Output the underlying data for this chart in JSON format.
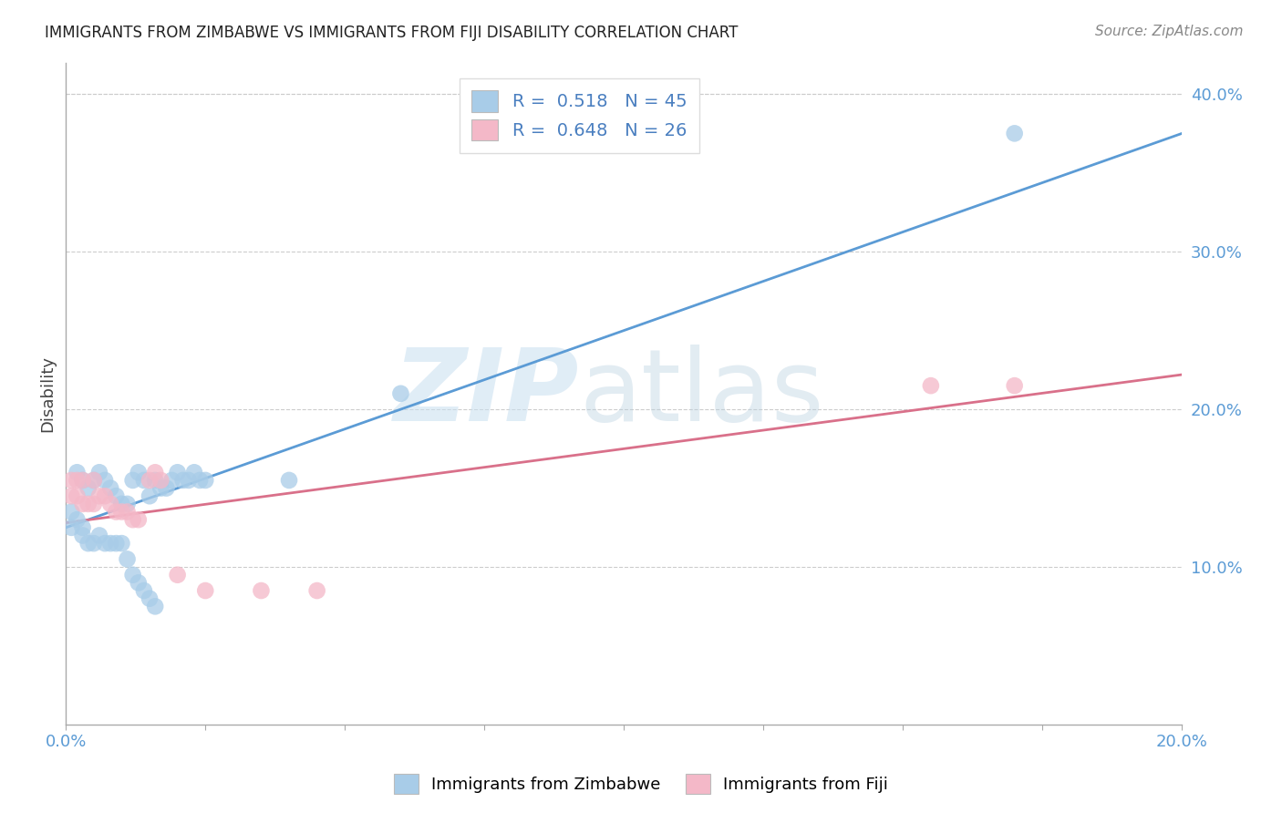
{
  "title": "IMMIGRANTS FROM ZIMBABWE VS IMMIGRANTS FROM FIJI DISABILITY CORRELATION CHART",
  "source": "Source: ZipAtlas.com",
  "ylabel": "Disability",
  "xlim": [
    0.0,
    0.2
  ],
  "ylim": [
    0.0,
    0.42
  ],
  "yticks_right": [
    0.1,
    0.2,
    0.3,
    0.4
  ],
  "ytick_labels_right": [
    "10.0%",
    "20.0%",
    "30.0%",
    "40.0%"
  ],
  "color_zimbabwe": "#a8cce8",
  "color_fiji": "#f4b8c8",
  "line_color_zimbabwe": "#5b9bd5",
  "line_color_fiji": "#d9708a",
  "R_zimbabwe": 0.518,
  "N_zimbabwe": 45,
  "R_fiji": 0.648,
  "N_fiji": 26,
  "legend_label_zimbabwe": "Immigrants from Zimbabwe",
  "legend_label_fiji": "Immigrants from Fiji",
  "zim_line_x0": 0.0,
  "zim_line_y0": 0.125,
  "zim_line_x1": 0.2,
  "zim_line_y1": 0.375,
  "fiji_line_x0": 0.0,
  "fiji_line_y0": 0.128,
  "fiji_line_x1": 0.2,
  "fiji_line_y1": 0.222,
  "zimbabwe_x": [
    0.002,
    0.003,
    0.004,
    0.005,
    0.006,
    0.007,
    0.008,
    0.009,
    0.01,
    0.011,
    0.012,
    0.013,
    0.014,
    0.015,
    0.016,
    0.017,
    0.018,
    0.019,
    0.02,
    0.021,
    0.022,
    0.023,
    0.024,
    0.025,
    0.001,
    0.001,
    0.002,
    0.003,
    0.003,
    0.004,
    0.005,
    0.006,
    0.007,
    0.008,
    0.009,
    0.01,
    0.011,
    0.012,
    0.013,
    0.014,
    0.015,
    0.016,
    0.04,
    0.06,
    0.17
  ],
  "zimbabwe_y": [
    0.16,
    0.155,
    0.15,
    0.155,
    0.16,
    0.155,
    0.15,
    0.145,
    0.14,
    0.14,
    0.155,
    0.16,
    0.155,
    0.145,
    0.155,
    0.15,
    0.15,
    0.155,
    0.16,
    0.155,
    0.155,
    0.16,
    0.155,
    0.155,
    0.135,
    0.125,
    0.13,
    0.125,
    0.12,
    0.115,
    0.115,
    0.12,
    0.115,
    0.115,
    0.115,
    0.115,
    0.105,
    0.095,
    0.09,
    0.085,
    0.08,
    0.075,
    0.155,
    0.21,
    0.375
  ],
  "fiji_x": [
    0.001,
    0.001,
    0.002,
    0.002,
    0.003,
    0.003,
    0.004,
    0.005,
    0.005,
    0.006,
    0.007,
    0.008,
    0.009,
    0.01,
    0.011,
    0.012,
    0.013,
    0.015,
    0.016,
    0.017,
    0.02,
    0.025,
    0.035,
    0.045,
    0.155,
    0.17
  ],
  "fiji_y": [
    0.155,
    0.145,
    0.155,
    0.145,
    0.155,
    0.14,
    0.14,
    0.155,
    0.14,
    0.145,
    0.145,
    0.14,
    0.135,
    0.135,
    0.135,
    0.13,
    0.13,
    0.155,
    0.16,
    0.155,
    0.095,
    0.085,
    0.085,
    0.085,
    0.215,
    0.215
  ]
}
